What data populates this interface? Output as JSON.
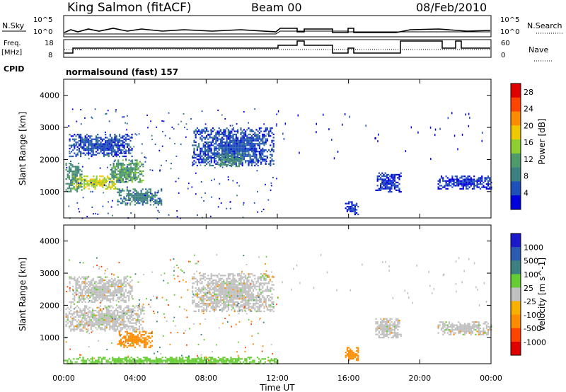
{
  "header": {
    "station": "King Salmon (fitACF)",
    "beam": "Beam 00",
    "date": "08/Feb/2010"
  },
  "top_panels": {
    "nsky_label": "N.Sky",
    "nsky_ticks": [
      "10^5",
      "10^0"
    ],
    "nsearch_label": "N.Search",
    "nsearch_ticks": [
      "10^5",
      "10^0"
    ],
    "freq_label": "Freq.",
    "freq_unit": "[MHz]",
    "freq_ticks": [
      "18",
      "8"
    ],
    "nave_label": "Nave",
    "nave_ticks": [
      "60",
      "0"
    ],
    "cpid_label": "CPID",
    "program": "normalsound (fast) 157"
  },
  "colors": {
    "power": [
      "#0000dd",
      "#1f4fb8",
      "#3d8080",
      "#4f9a6a",
      "#8ccf2e",
      "#f0c800",
      "#ff8c00",
      "#ff4400",
      "#e00000"
    ],
    "velocity": [
      "#e00000",
      "#ff4400",
      "#ff8c00",
      "#f7b000",
      "#c0c0c0",
      "#66cc33",
      "#3d8080",
      "#2a5bb0",
      "#1a1acc"
    ],
    "echo_grey": "#c0c0c0"
  },
  "chart_data": [
    {
      "type": "heatmap",
      "name": "Power",
      "xlabel": "Time UT",
      "ylabel": "Slant Range [km]",
      "xlim": [
        0,
        24
      ],
      "ylim": [
        180,
        4500
      ],
      "x_ticks": [
        "00:00",
        "04:00",
        "08:00",
        "12:00",
        "16:00",
        "20:00",
        "00:00"
      ],
      "y_ticks": [
        1000,
        2000,
        3000,
        4000
      ],
      "colorbar": {
        "label": "Power [dB]",
        "ticks": [
          4,
          8,
          12,
          16,
          20,
          24,
          28
        ],
        "range": [
          0,
          30
        ]
      },
      "echo_regions": [
        {
          "t": [
            0.1,
            1.0
          ],
          "r": [
            1000,
            1900
          ],
          "value": 12
        },
        {
          "t": [
            0.5,
            3.0
          ],
          "r": [
            1100,
            1500
          ],
          "value": 20
        },
        {
          "t": [
            2.5,
            4.5
          ],
          "r": [
            1300,
            2000
          ],
          "value": 14
        },
        {
          "t": [
            0.3,
            3.8
          ],
          "r": [
            2100,
            2800
          ],
          "value": 6
        },
        {
          "t": [
            3.0,
            5.5
          ],
          "r": [
            600,
            1100
          ],
          "value": 10
        },
        {
          "t": [
            7.2,
            11.8
          ],
          "r": [
            1800,
            3000
          ],
          "value": 6
        },
        {
          "t": [
            8.5,
            10.0
          ],
          "r": [
            1800,
            2200
          ],
          "value": 12
        },
        {
          "t": [
            15.8,
            16.5
          ],
          "r": [
            300,
            700
          ],
          "value": 4
        },
        {
          "t": [
            17.5,
            18.9
          ],
          "r": [
            1000,
            1600
          ],
          "value": 4
        },
        {
          "t": [
            21.0,
            24.0
          ],
          "r": [
            1100,
            1500
          ],
          "value": 4
        }
      ]
    },
    {
      "type": "heatmap",
      "name": "Velocity",
      "xlabel": "Time UT",
      "ylabel": "Slant Range [km]",
      "xlim": [
        0,
        24
      ],
      "ylim": [
        180,
        4500
      ],
      "x_ticks": [
        "00:00",
        "04:00",
        "08:00",
        "12:00",
        "16:00",
        "20:00",
        "00:00"
      ],
      "y_ticks": [
        1000,
        2000,
        3000,
        4000
      ],
      "colorbar": {
        "label": "Velocity [m s^-1]",
        "ticks": [
          1000,
          500,
          100,
          25,
          -25,
          -100,
          -500,
          -1000
        ]
      },
      "echo_regions": [
        {
          "t": [
            0.1,
            4.5
          ],
          "r": [
            1200,
            2000
          ],
          "value": 0
        },
        {
          "t": [
            0.3,
            3.8
          ],
          "r": [
            2100,
            2900
          ],
          "value": 0
        },
        {
          "t": [
            3.0,
            5.0
          ],
          "r": [
            700,
            1200
          ],
          "value": -100
        },
        {
          "t": [
            7.2,
            11.8
          ],
          "r": [
            1800,
            3000
          ],
          "value": 0
        },
        {
          "t": [
            15.8,
            16.5
          ],
          "r": [
            300,
            700
          ],
          "value": -100
        },
        {
          "t": [
            17.5,
            18.9
          ],
          "r": [
            1000,
            1600
          ],
          "value": 0
        },
        {
          "t": [
            21.0,
            24.0
          ],
          "r": [
            1100,
            1500
          ],
          "value": 0
        },
        {
          "t": [
            0.0,
            12.0
          ],
          "r": [
            180,
            400
          ],
          "value": 50
        }
      ]
    }
  ]
}
